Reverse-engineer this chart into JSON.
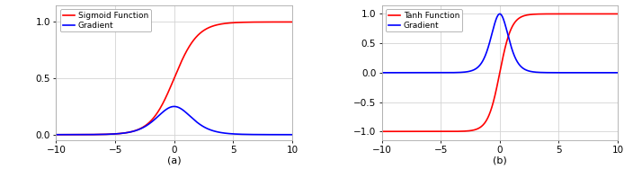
{
  "xlim": [
    -10,
    10
  ],
  "sigmoid_ylim": [
    -0.05,
    1.15
  ],
  "tanh_ylim": [
    -1.15,
    1.15
  ],
  "xticks": [
    -10,
    -5,
    0,
    5,
    10
  ],
  "sigmoid_yticks": [
    0,
    0.5,
    1
  ],
  "tanh_yticks": [
    -1,
    -0.5,
    0,
    0.5,
    1
  ],
  "sigmoid_legend": [
    "Sigmoid Function",
    "Gradient"
  ],
  "tanh_legend": [
    "Tanh Function",
    "Gradient"
  ],
  "sigmoid_xlabel": "(a)",
  "tanh_xlabel": "(b)",
  "line_red": "#FF0000",
  "line_blue": "#0000FF",
  "background_color": "#FFFFFF",
  "grid_color": "#D3D3D3",
  "spine_color": "#AAAAAA",
  "line_width": 1.2,
  "fig_width": 6.94,
  "fig_height": 1.88,
  "tick_fontsize": 7.5,
  "legend_fontsize": 6.5
}
